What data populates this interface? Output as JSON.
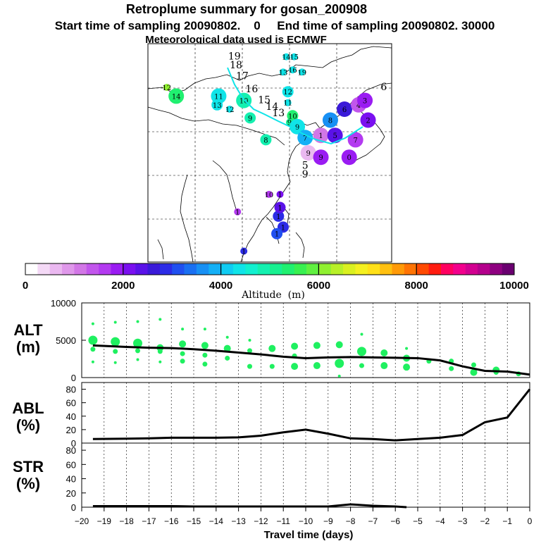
{
  "header": {
    "title": "Retroplume summary for gosan_200908",
    "subtitle": "Start time of sampling 20090802.    0     End time of sampling 20090802. 30000",
    "met_note": "Meteorological data used is ECMWF"
  },
  "colorbar": {
    "tick_labels": [
      "0",
      "2000",
      "4000",
      "6000",
      "8000",
      "10000"
    ],
    "label": "Altitude  (m)",
    "colors": [
      "#ffffff",
      "#f4d9f6",
      "#eab8f0",
      "#df98ea",
      "#d277e6",
      "#c256ec",
      "#b33af0",
      "#9a1cf2",
      "#7a10f0",
      "#5a12e8",
      "#3a1ad8",
      "#2c2ce6",
      "#2050f0",
      "#1a70f2",
      "#1890f4",
      "#14b0f6",
      "#10ccf2",
      "#10e4e8",
      "#12f0d0",
      "#14f0b0",
      "#18f090",
      "#20f070",
      "#38f050",
      "#60f040",
      "#90f030",
      "#b8f028",
      "#daf020",
      "#f4f020",
      "#ffe018",
      "#ffc010",
      "#ff9a08",
      "#ff7404",
      "#ff4a02",
      "#ff1c10",
      "#ff0060",
      "#f2008c",
      "#d20090",
      "#b4008c",
      "#8e0080",
      "#6a0070"
    ]
  },
  "map": {
    "markers": [
      {
        "label": "19",
        "color": "#10e4e8",
        "size": "none",
        "lx": 0.55,
        "ly": 0.06
      },
      {
        "label": "18",
        "color": "#10e4e8",
        "size": "none",
        "lx": 0.56,
        "ly": 0.1
      },
      {
        "label": "17",
        "color": "#10e4e8",
        "size": "none",
        "lx": 0.6,
        "ly": 0.15
      },
      {
        "label": "16",
        "color": "#14f0b0",
        "size": "none",
        "lx": 0.66,
        "ly": 0.21
      },
      {
        "label": "15",
        "color": "#14f0b0",
        "size": "none",
        "lx": 0.74,
        "ly": 0.26
      },
      {
        "label": "14",
        "color": "#18f090",
        "size": "none",
        "lx": 0.79,
        "ly": 0.29
      },
      {
        "label": "13",
        "color": "#18f090",
        "size": "none",
        "lx": 0.83,
        "ly": 0.32
      },
      {
        "label": "12",
        "color": "#90f030",
        "size": "small",
        "lx": 0.12,
        "ly": 0.2
      },
      {
        "label": "14",
        "color": "#20f070",
        "size": "large",
        "lx": 0.18,
        "ly": 0.24
      },
      {
        "label": "11",
        "color": "#10e4e8",
        "size": "large",
        "lx": 0.45,
        "ly": 0.24
      },
      {
        "label": "13",
        "color": "#10e4e8",
        "size": "medium",
        "lx": 0.44,
        "ly": 0.28
      },
      {
        "label": "12",
        "color": "#10e4e8",
        "size": "small",
        "lx": 0.52,
        "ly": 0.3
      },
      {
        "label": "10",
        "color": "#14f0b0",
        "size": "large",
        "lx": 0.61,
        "ly": 0.26
      },
      {
        "label": "9",
        "color": "#14f0b0",
        "size": "medium",
        "lx": 0.65,
        "ly": 0.34
      },
      {
        "label": "8",
        "color": "#14f0b0",
        "size": "medium",
        "lx": 0.75,
        "ly": 0.44
      },
      {
        "label": "14",
        "color": "#10e4e8",
        "size": "small",
        "lx": 0.88,
        "ly": 0.06
      },
      {
        "label": "15",
        "color": "#10e4e8",
        "size": "small",
        "lx": 0.93,
        "ly": 0.06
      },
      {
        "label": "13",
        "color": "#10e4e8",
        "size": "small",
        "lx": 0.86,
        "ly": 0.13
      },
      {
        "label": "16",
        "color": "#10e4e8",
        "size": "small",
        "lx": 0.92,
        "ly": 0.12
      },
      {
        "label": "19",
        "color": "#10e4e8",
        "size": "small",
        "lx": 0.98,
        "ly": 0.13
      },
      {
        "label": "12",
        "color": "#10e4e8",
        "size": "medium",
        "lx": 0.89,
        "ly": 0.22
      },
      {
        "label": "11",
        "color": "#10e4e8",
        "size": "small",
        "lx": 0.89,
        "ly": 0.27
      },
      {
        "label": "10",
        "color": "#20f070",
        "size": "medium",
        "lx": 0.92,
        "ly": 0.33
      },
      {
        "label": "9",
        "color": "#18f090",
        "size": "small",
        "lx": 0.9,
        "ly": 0.36
      },
      {
        "label": "9",
        "color": "#10e4e8",
        "size": "large",
        "lx": 0.95,
        "ly": 0.38
      },
      {
        "label": "7",
        "color": "#14b0f6",
        "size": "large",
        "lx": 1.0,
        "ly": 0.43
      },
      {
        "label": "1",
        "color": "#d277e6",
        "size": "large",
        "lx": 1.1,
        "ly": 0.42
      },
      {
        "label": "8",
        "color": "#1890f4",
        "size": "large",
        "lx": 1.16,
        "ly": 0.35
      },
      {
        "label": "6",
        "color": "#3a1ad8",
        "size": "large",
        "lx": 1.25,
        "ly": 0.3
      },
      {
        "label": "5",
        "color": "#5a12e8",
        "size": "large",
        "lx": 1.19,
        "ly": 0.42
      },
      {
        "label": "4",
        "color": "#c256ec",
        "size": "large",
        "lx": 1.34,
        "ly": 0.28
      },
      {
        "label": "3",
        "color": "#9a1cf2",
        "size": "large",
        "lx": 1.38,
        "ly": 0.26
      },
      {
        "label": "2",
        "color": "#7a10f0",
        "size": "large",
        "lx": 1.4,
        "ly": 0.35
      },
      {
        "label": "9",
        "color": "#eab8f0",
        "size": "large",
        "lx": 1.02,
        "ly": 0.5
      },
      {
        "label": "9",
        "color": "#9a1cf2",
        "size": "large",
        "lx": 1.1,
        "ly": 0.52
      },
      {
        "label": "0",
        "color": "#9a1cf2",
        "size": "large",
        "lx": 1.28,
        "ly": 0.52
      },
      {
        "label": "7",
        "color": "#b33af0",
        "size": "large",
        "lx": 1.32,
        "ly": 0.44
      },
      {
        "label": "6",
        "color": "#b33af0",
        "size": "none",
        "lx": 1.5,
        "ly": 0.2
      },
      {
        "label": "5",
        "color": "#b33af0",
        "size": "none",
        "lx": 1.0,
        "ly": 0.56
      },
      {
        "label": "9",
        "color": "#b33af0",
        "size": "none",
        "lx": 1.0,
        "ly": 0.6
      },
      {
        "label": "10",
        "color": "#b33af0",
        "size": "small",
        "lx": 0.77,
        "ly": 0.69
      },
      {
        "label": "1",
        "color": "#7a10f0",
        "size": "small",
        "lx": 0.84,
        "ly": 0.69
      },
      {
        "label": "1",
        "color": "#b33af0",
        "size": "small",
        "lx": 0.57,
        "ly": 0.77
      },
      {
        "label": "1",
        "color": "#2c2ce6",
        "size": "medium",
        "lx": 0.83,
        "ly": 0.79
      },
      {
        "label": "1",
        "color": "#5a12e8",
        "size": "medium",
        "lx": 0.84,
        "ly": 0.75
      },
      {
        "label": "1",
        "color": "#2c2ce6",
        "size": "medium",
        "lx": 0.86,
        "ly": 0.84
      },
      {
        "label": "1",
        "color": "#2050f0",
        "size": "medium",
        "lx": 0.82,
        "ly": 0.87
      },
      {
        "label": "1",
        "color": "#2c2ce6",
        "size": "small",
        "lx": 0.61,
        "ly": 0.95
      }
    ]
  },
  "chart_data": [
    {
      "type": "scatter",
      "title": "ALT (m)",
      "ylabel": "ALT (m)",
      "ylim": [
        0,
        10000
      ],
      "yticks": [
        0,
        5000,
        10000
      ],
      "x": [
        -19.5,
        -19,
        -18.5,
        -18,
        -17.5,
        -17,
        -16.5,
        -16,
        -15.5,
        -15,
        -14.5,
        -14,
        -13.5,
        -13,
        -12.5,
        -12,
        -11.5,
        -11,
        -10.5,
        -10,
        -9.5,
        -9,
        -8.5,
        -8,
        -7.5,
        -7,
        -6.5,
        -6,
        -5.5,
        -5,
        -4.5,
        -4,
        -3.5,
        -3,
        -2.5,
        -2,
        -1.5,
        -1,
        -0.5,
        0
      ],
      "mean_line": {
        "name": "mean altitude",
        "x": [
          -19.5,
          -18,
          -17,
          -16,
          -15,
          -14,
          -13,
          -12,
          -11,
          -10,
          -9,
          -8,
          -7,
          -6,
          -5,
          -4,
          -3,
          -2,
          -1,
          0
        ],
        "y": [
          4300,
          4100,
          4000,
          3950,
          3800,
          3600,
          3350,
          3100,
          2800,
          2600,
          2700,
          2750,
          2700,
          2650,
          2600,
          2300,
          1500,
          900,
          800,
          400
        ]
      },
      "points": [
        {
          "x": -19.5,
          "y": 7200,
          "s": 1
        },
        {
          "x": -19.5,
          "y": 5000,
          "s": 4
        },
        {
          "x": -19.5,
          "y": 3800,
          "s": 2
        },
        {
          "x": -19.5,
          "y": 2100,
          "s": 1
        },
        {
          "x": -18.5,
          "y": 7400,
          "s": 1
        },
        {
          "x": -18.5,
          "y": 4800,
          "s": 4
        },
        {
          "x": -18.5,
          "y": 3500,
          "s": 2
        },
        {
          "x": -18.5,
          "y": 2000,
          "s": 1
        },
        {
          "x": -17.5,
          "y": 7500,
          "s": 1
        },
        {
          "x": -17.5,
          "y": 4600,
          "s": 4
        },
        {
          "x": -17.5,
          "y": 3600,
          "s": 2
        },
        {
          "x": -17.5,
          "y": 2400,
          "s": 1
        },
        {
          "x": -16.5,
          "y": 7800,
          "s": 1
        },
        {
          "x": -16.5,
          "y": 4000,
          "s": 3
        },
        {
          "x": -16.5,
          "y": 3500,
          "s": 2
        },
        {
          "x": -16.5,
          "y": 2100,
          "s": 1
        },
        {
          "x": -15.5,
          "y": 6500,
          "s": 1
        },
        {
          "x": -15.5,
          "y": 4500,
          "s": 3
        },
        {
          "x": -15.5,
          "y": 3200,
          "s": 2
        },
        {
          "x": -15.5,
          "y": 2200,
          "s": 2
        },
        {
          "x": -14.5,
          "y": 6500,
          "s": 1
        },
        {
          "x": -14.5,
          "y": 4300,
          "s": 3
        },
        {
          "x": -14.5,
          "y": 3000,
          "s": 2
        },
        {
          "x": -14.5,
          "y": 1800,
          "s": 2
        },
        {
          "x": -13.5,
          "y": 5400,
          "s": 1
        },
        {
          "x": -13.5,
          "y": 3900,
          "s": 3
        },
        {
          "x": -13.5,
          "y": 2600,
          "s": 2
        },
        {
          "x": -12.5,
          "y": 5000,
          "s": 1
        },
        {
          "x": -12.5,
          "y": 3600,
          "s": 2
        },
        {
          "x": -12.5,
          "y": 1500,
          "s": 2
        },
        {
          "x": -11.5,
          "y": 3900,
          "s": 3
        },
        {
          "x": -11.5,
          "y": 1500,
          "s": 2
        },
        {
          "x": -10.5,
          "y": 4200,
          "s": 3
        },
        {
          "x": -10.5,
          "y": 2900,
          "s": 2
        },
        {
          "x": -10.5,
          "y": 1500,
          "s": 3
        },
        {
          "x": -9.5,
          "y": 4300,
          "s": 3
        },
        {
          "x": -9.5,
          "y": 1600,
          "s": 3
        },
        {
          "x": -8.5,
          "y": 4400,
          "s": 3
        },
        {
          "x": -8.5,
          "y": 1900,
          "s": 4
        },
        {
          "x": -8.5,
          "y": 200,
          "s": 1
        },
        {
          "x": -7.5,
          "y": 5800,
          "s": 1
        },
        {
          "x": -7.5,
          "y": 3500,
          "s": 4
        },
        {
          "x": -7.5,
          "y": 1600,
          "s": 2
        },
        {
          "x": -6.5,
          "y": 3300,
          "s": 3
        },
        {
          "x": -6.5,
          "y": 1600,
          "s": 3
        },
        {
          "x": -5.5,
          "y": 3900,
          "s": 1
        },
        {
          "x": -5.5,
          "y": 2600,
          "s": 3
        },
        {
          "x": -5.5,
          "y": 1400,
          "s": 3
        },
        {
          "x": -4.5,
          "y": 2200,
          "s": 2
        },
        {
          "x": -3.5,
          "y": 2200,
          "s": 2
        },
        {
          "x": -3.5,
          "y": 1200,
          "s": 2
        },
        {
          "x": -2.5,
          "y": 1700,
          "s": 2
        },
        {
          "x": -2.5,
          "y": 700,
          "s": 3
        },
        {
          "x": -1.5,
          "y": 1000,
          "s": 3
        },
        {
          "x": -1.5,
          "y": 700,
          "s": 2
        },
        {
          "x": -0.5,
          "y": 500,
          "s": 2
        }
      ]
    },
    {
      "type": "line",
      "title": "ABL (%)",
      "ylabel": "ABL (%)",
      "ylim": [
        0,
        90
      ],
      "yticks": [
        0,
        20,
        40,
        60,
        80
      ],
      "x": [
        -19.5,
        -18,
        -17,
        -16,
        -15,
        -14,
        -13,
        -12,
        -11,
        -10,
        -9,
        -8,
        -7,
        -6,
        -5,
        -4,
        -3,
        -2,
        -1,
        0
      ],
      "values": [
        6,
        6.5,
        7,
        8,
        8,
        8,
        8.5,
        11,
        16,
        20,
        14,
        7,
        6,
        4,
        6,
        8,
        12,
        31,
        38,
        80
      ]
    },
    {
      "type": "line",
      "title": "STR (%)",
      "ylabel": "STR (%)",
      "ylim": [
        0,
        90
      ],
      "yticks": [
        0,
        20,
        40,
        60,
        80
      ],
      "x": [
        -19.5,
        -18,
        -17,
        -16,
        -15,
        -14,
        -13,
        -12,
        -11,
        -10,
        -9,
        -8,
        -7,
        -6,
        -5.5
      ],
      "values": [
        1.5,
        1.5,
        1.5,
        1.5,
        1,
        1,
        1,
        1,
        1,
        1,
        1,
        4,
        2,
        1,
        0
      ]
    }
  ],
  "axes": {
    "ylabel_alt_top": "ALT",
    "ylabel_alt_bot": "(m)",
    "ylabel_abl_top": "ABL",
    "ylabel_abl_bot": "(%)",
    "ylabel_str_top": "STR",
    "ylabel_str_bot": "(%)",
    "xlabel": "Travel time (days)",
    "xticks": [
      -20,
      -19,
      -18,
      -17,
      -16,
      -15,
      -14,
      -13,
      -12,
      -11,
      -10,
      -9,
      -8,
      -7,
      -6,
      -5,
      -4,
      -3,
      -2,
      -1,
      0
    ],
    "marker_color": "#1ff060",
    "line_color": "#000000"
  }
}
